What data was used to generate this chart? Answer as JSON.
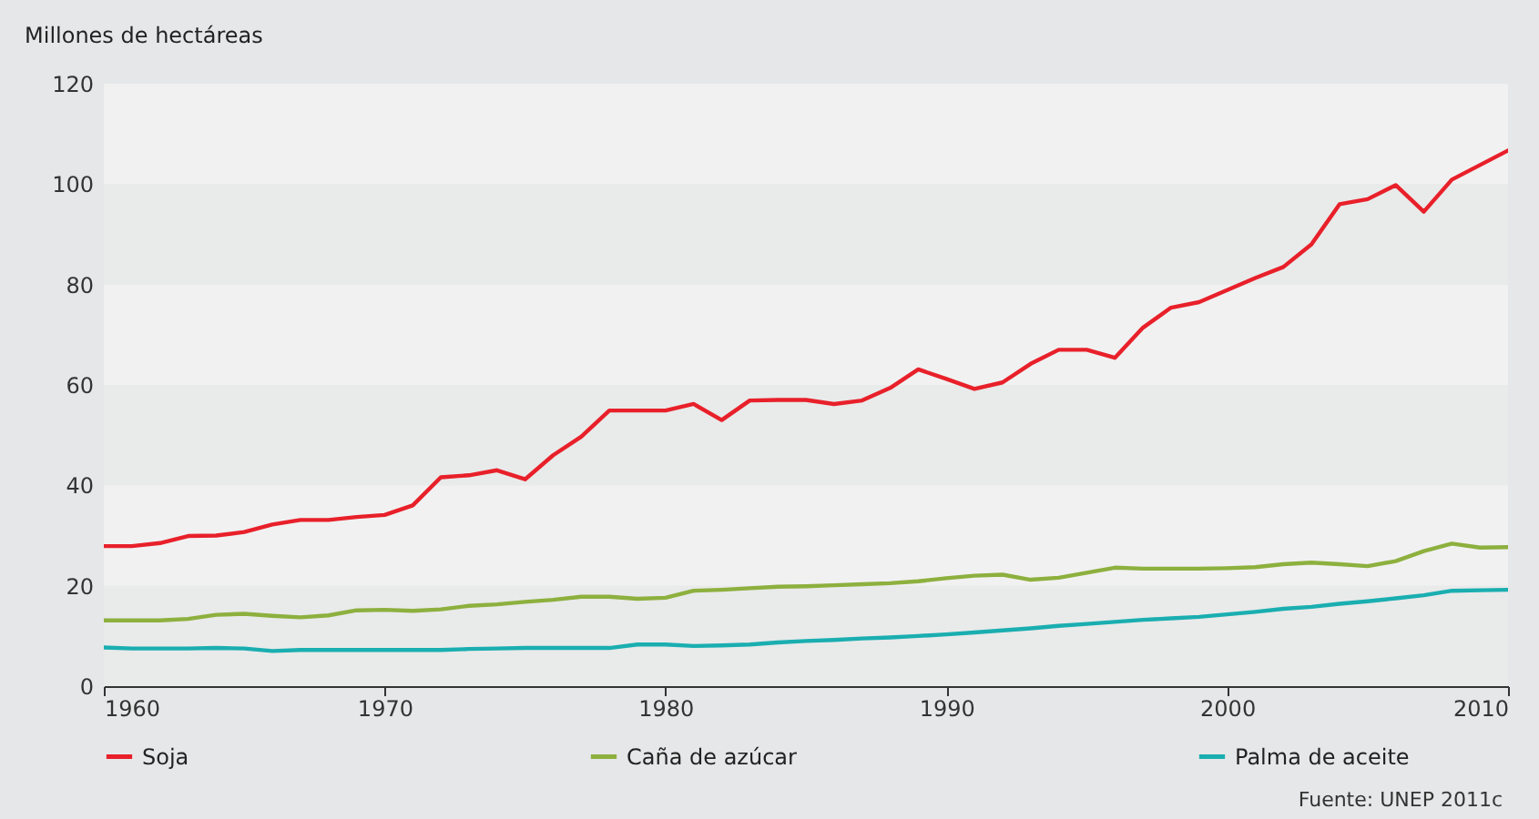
{
  "chart_data": {
    "type": "line",
    "ylabel": "Millones de hectáreas",
    "annotations": [
      "Fuente: UNEP 2011c"
    ],
    "x": [
      1960,
      1961,
      1962,
      1963,
      1964,
      1965,
      1966,
      1967,
      1968,
      1969,
      1970,
      1971,
      1972,
      1973,
      1974,
      1975,
      1976,
      1977,
      1978,
      1979,
      1980,
      1981,
      1982,
      1983,
      1984,
      1985,
      1986,
      1987,
      1988,
      1989,
      1990,
      1991,
      1992,
      1993,
      1994,
      1995,
      1996,
      1997,
      1998,
      1999,
      2000,
      2001,
      2002,
      2003,
      2004,
      2005,
      2006,
      2007,
      2008,
      2009,
      2010
    ],
    "series": [
      {
        "name": "Soja",
        "color": "#e8202a",
        "values": [
          27.9,
          27.9,
          28.5,
          29.9,
          30,
          30.7,
          32.2,
          33.1,
          33.1,
          33.7,
          34.1,
          36,
          41.6,
          42,
          43,
          41.2,
          46,
          49.7,
          54.9,
          54.9,
          54.9,
          56.2,
          53,
          56.9,
          57,
          57,
          56.2,
          56.9,
          59.4,
          63.1,
          61.2,
          59.2,
          60.5,
          64.2,
          67,
          67,
          65.4,
          71.4,
          75.4,
          76.5,
          78.9,
          81.3,
          83.5,
          88,
          96,
          97,
          99.8,
          94.5,
          100.9,
          103.8,
          106.7
        ]
      },
      {
        "name": "Caña de azúcar",
        "color": "#8db03e",
        "values": [
          13.1,
          13.1,
          13.1,
          13.4,
          14.2,
          14.4,
          14,
          13.7,
          14.1,
          15.1,
          15.2,
          15,
          15.3,
          16,
          16.3,
          16.8,
          17.2,
          17.8,
          17.8,
          17.4,
          17.6,
          19,
          19.2,
          19.5,
          19.8,
          19.9,
          20.1,
          20.3,
          20.5,
          20.9,
          21.5,
          22,
          22.2,
          21.2,
          21.6,
          22.6,
          23.6,
          23.4,
          23.4,
          23.4,
          23.5,
          23.7,
          24.3,
          24.6,
          24.3,
          23.9,
          24.9,
          26.9,
          28.4,
          27.6,
          27.7
        ]
      },
      {
        "name": "Palma de aceite",
        "color": "#1aaeb0",
        "values": [
          7.7,
          7.5,
          7.5,
          7.5,
          7.6,
          7.5,
          7,
          7.2,
          7.2,
          7.2,
          7.2,
          7.2,
          7.2,
          7.4,
          7.5,
          7.6,
          7.6,
          7.6,
          7.6,
          8.3,
          8.3,
          8,
          8.1,
          8.3,
          8.7,
          9,
          9.2,
          9.5,
          9.7,
          10,
          10.3,
          10.7,
          11.1,
          11.5,
          12,
          12.4,
          12.8,
          13.2,
          13.5,
          13.8,
          14.3,
          14.8,
          15.4,
          15.8,
          16.4,
          16.9,
          17.5,
          18.1,
          19,
          19.1,
          19.2
        ]
      }
    ],
    "xlim": [
      1960,
      2010
    ],
    "xticks": [
      1960,
      1970,
      1980,
      1990,
      2000,
      2010
    ],
    "ylim": [
      0,
      120
    ],
    "yticks": [
      0,
      20,
      40,
      60,
      80,
      100,
      120
    ],
    "legend": "bottom",
    "marker": "none",
    "line_style": "solid"
  }
}
